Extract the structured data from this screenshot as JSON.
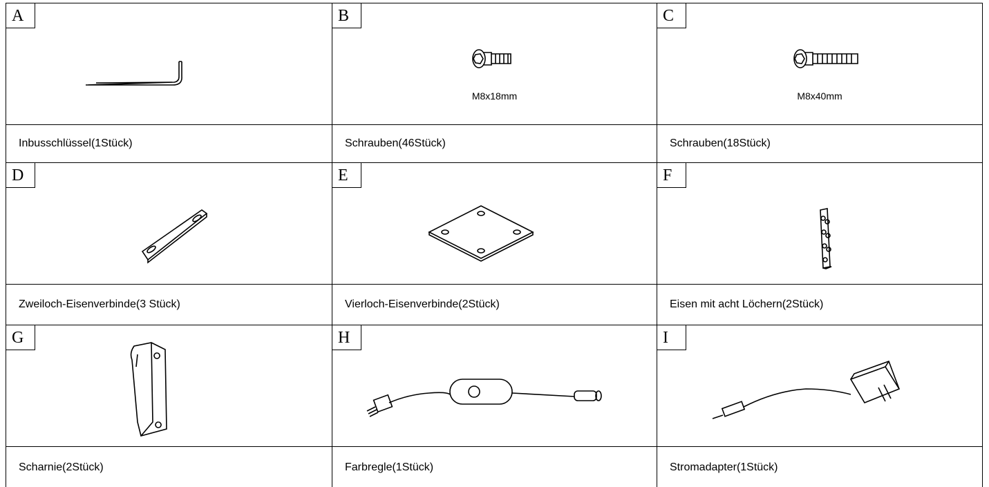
{
  "parts": [
    {
      "letter": "A",
      "label": "Inbusschlüssel(1Stück)"
    },
    {
      "letter": "B",
      "size": "M8x18mm",
      "label": "Schrauben(46Stück)"
    },
    {
      "letter": "C",
      "size": "M8x40mm",
      "label": "Schrauben(18Stück)"
    },
    {
      "letter": "D",
      "label": "Zweiloch-Eisenverbinde(3 Stück)"
    },
    {
      "letter": "E",
      "label": "Vierloch-Eisenverbinde(2Stück)"
    },
    {
      "letter": "F",
      "label": "Eisen mit acht Löchern(2Stück)"
    },
    {
      "letter": "G",
      "label": "Scharnie(2Stück)"
    },
    {
      "letter": "H",
      "label": "Farbregle(1Stück)"
    },
    {
      "letter": "I",
      "label": "Stromadapter(1Stück)"
    }
  ]
}
